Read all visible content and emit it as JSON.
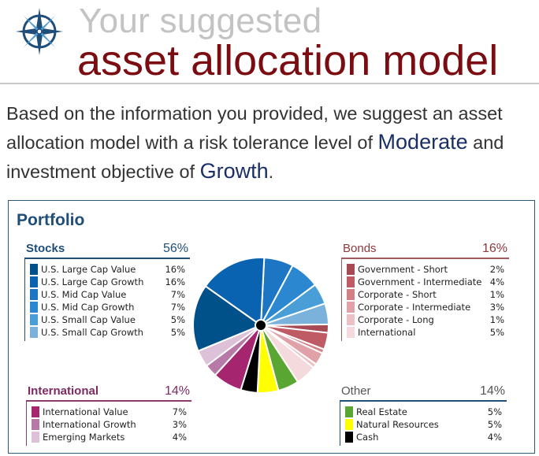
{
  "header": {
    "title_line1": "Your suggested",
    "title_line2": "asset allocation model",
    "logo_icon": "compass-icon"
  },
  "intro": {
    "text_before": "Based on the information you provided, we suggest an asset allocation model with a risk tolerance level of ",
    "risk_level": "Moderate",
    "text_middle": " and investment objective of ",
    "objective": "Growth",
    "text_after": "."
  },
  "portfolio": {
    "title": "Portfolio"
  },
  "colors": {
    "brand_blue": "#1f4e79",
    "brand_red": "#7b0d12",
    "highlight": "#1a2f66"
  },
  "chart_data": {
    "type": "pie",
    "title": "Portfolio",
    "groups": [
      {
        "name": "Stocks",
        "percent": "56%",
        "items": [
          {
            "label": "U.S. Large Cap Value",
            "value": 16,
            "display": "16%",
            "color": "#00518a"
          },
          {
            "label": "U.S. Large Cap Growth",
            "value": 16,
            "display": "16%",
            "color": "#0a63b0"
          },
          {
            "label": "U.S. Mid Cap Value",
            "value": 7,
            "display": "7%",
            "color": "#1c76c3"
          },
          {
            "label": "U.S. Mid Cap Growth",
            "value": 7,
            "display": "7%",
            "color": "#2b88d0"
          },
          {
            "label": "U.S. Small Cap Value",
            "value": 5,
            "display": "5%",
            "color": "#4a9ed8"
          },
          {
            "label": "U.S. Small Cap Growth",
            "value": 5,
            "display": "5%",
            "color": "#7ab2db"
          }
        ]
      },
      {
        "name": "Bonds",
        "percent": "16%",
        "items": [
          {
            "label": "Government - Short",
            "value": 2,
            "display": "2%",
            "color": "#a84a54"
          },
          {
            "label": "Government - Intermediate",
            "value": 4,
            "display": "4%",
            "color": "#bf5b64"
          },
          {
            "label": "Corporate - Short",
            "value": 1,
            "display": "1%",
            "color": "#d27f86"
          },
          {
            "label": "Corporate - Intermediate",
            "value": 3,
            "display": "3%",
            "color": "#e0a2a8"
          },
          {
            "label": "Corporate - Long",
            "value": 1,
            "display": "1%",
            "color": "#ebc1c5"
          },
          {
            "label": "International",
            "value": 5,
            "display": "5%",
            "color": "#f5dadd"
          }
        ]
      },
      {
        "name": "International",
        "percent": "14%",
        "items": [
          {
            "label": "International Value",
            "value": 7,
            "display": "7%",
            "color": "#a6256f"
          },
          {
            "label": "International Growth",
            "value": 3,
            "display": "3%",
            "color": "#b77aa6"
          },
          {
            "label": "Emerging Markets",
            "value": 4,
            "display": "4%",
            "color": "#dcc1d8"
          }
        ]
      },
      {
        "name": "Other",
        "percent": "14%",
        "items": [
          {
            "label": "Real Estate",
            "value": 5,
            "display": "5%",
            "color": "#5aa632"
          },
          {
            "label": "Natural Resources",
            "value": 5,
            "display": "5%",
            "color": "#ffff00"
          },
          {
            "label": "Cash",
            "value": 4,
            "display": "4%",
            "color": "#000000"
          }
        ]
      }
    ],
    "pie_order": [
      "U.S. Mid Cap Value",
      "U.S. Mid Cap Growth",
      "U.S. Small Cap Value",
      "U.S. Small Cap Growth",
      "Government - Short",
      "Government - Intermediate",
      "Corporate - Short",
      "Corporate - Intermediate",
      "Corporate - Long",
      "International",
      "Real Estate",
      "Natural Resources",
      "Cash",
      "International Value",
      "International Growth",
      "Emerging Markets",
      "U.S. Large Cap Value",
      "U.S. Large Cap Growth"
    ]
  }
}
